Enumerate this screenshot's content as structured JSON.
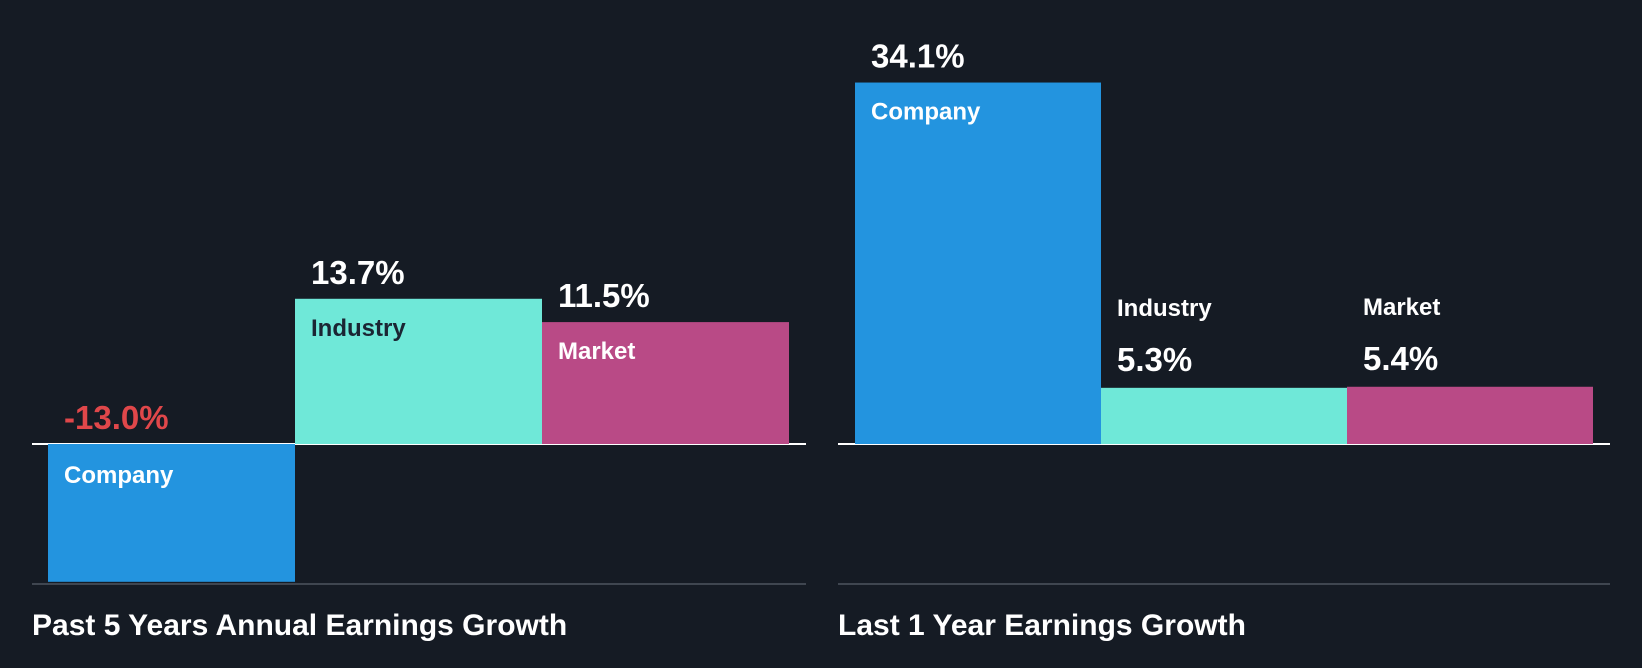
{
  "colors": {
    "background": "#151b24",
    "company": "#2394df",
    "industry": "#6fe8d8",
    "market": "#b94a86",
    "text_light": "#ffffff",
    "text_dark": "#1b2533",
    "negative": "#e0474a",
    "baseline": "#ffffff",
    "bottom_axis": "#3f4650"
  },
  "chart_data": [
    {
      "type": "bar",
      "title": "Past 5 Years Annual Earnings Growth",
      "categories": [
        "Company",
        "Industry",
        "Market"
      ],
      "values": [
        -13.0,
        13.7,
        11.5
      ],
      "value_labels": [
        "-13.0%",
        "13.7%",
        "11.5%"
      ],
      "unit": "%",
      "ylim": [
        -18,
        34.1
      ],
      "grid": false,
      "legend": "none"
    },
    {
      "type": "bar",
      "title": "Last 1 Year Earnings Growth",
      "categories": [
        "Company",
        "Industry",
        "Market"
      ],
      "values": [
        34.1,
        5.3,
        5.4
      ],
      "value_labels": [
        "34.1%",
        "5.3%",
        "5.4%"
      ],
      "unit": "%",
      "ylim": [
        -18,
        34.1
      ],
      "grid": false,
      "legend": "none"
    }
  ]
}
